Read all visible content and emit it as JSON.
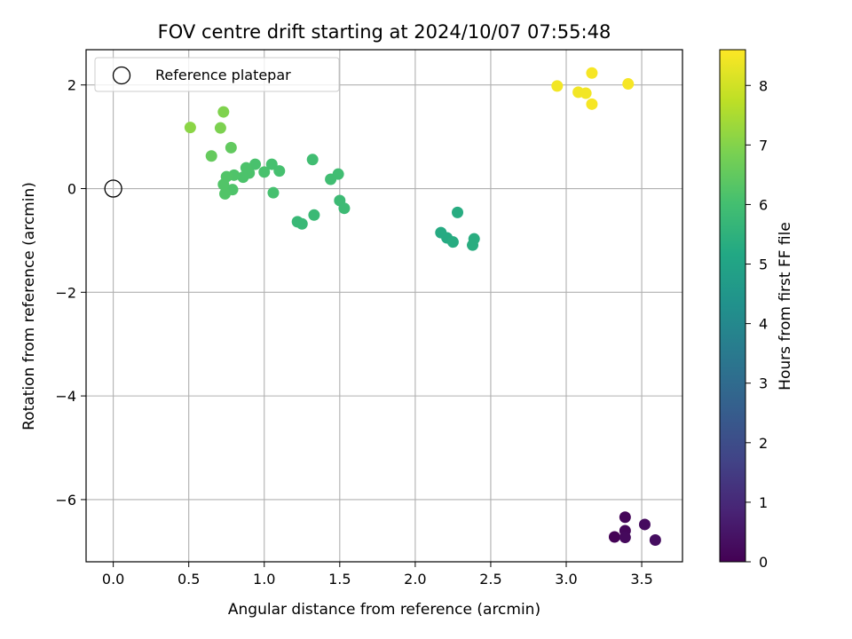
{
  "chart_data": {
    "type": "scatter",
    "title": "FOV centre drift starting at 2024/10/07 07:55:48",
    "xlabel": "Angular distance from reference (arcmin)",
    "ylabel": "Rotation from reference (arcmin)",
    "xlim": [
      -0.18,
      3.77
    ],
    "ylim": [
      -7.2,
      2.68
    ],
    "xticks": [
      0.0,
      0.5,
      1.0,
      1.5,
      2.0,
      2.5,
      3.0,
      3.5
    ],
    "xtick_labels": [
      "0.0",
      "0.5",
      "1.0",
      "1.5",
      "2.0",
      "2.5",
      "3.0",
      "3.5"
    ],
    "yticks": [
      -6,
      -4,
      -2,
      0,
      2
    ],
    "ytick_labels": [
      "−6",
      "−4",
      "−2",
      "0",
      "2"
    ],
    "grid": true,
    "legend": {
      "placement": "top-left",
      "entries": [
        {
          "label": "Reference platepar",
          "marker": "open-circle"
        }
      ]
    },
    "reference_point": {
      "x": 0.0,
      "y": 0.0
    },
    "colorbar": {
      "label": "Hours from first FF file",
      "colormap": "viridis",
      "range": [
        0,
        8.6
      ],
      "ticks": [
        0,
        1,
        2,
        3,
        4,
        5,
        6,
        7,
        8
      ],
      "tick_labels": [
        "0",
        "1",
        "2",
        "3",
        "4",
        "5",
        "6",
        "7",
        "8"
      ]
    },
    "points": [
      {
        "x": 3.32,
        "y": -6.72,
        "hours": 0.05
      },
      {
        "x": 3.39,
        "y": -6.34,
        "hours": 0.1
      },
      {
        "x": 3.39,
        "y": -6.6,
        "hours": 0.15
      },
      {
        "x": 3.39,
        "y": -6.73,
        "hours": 0.2
      },
      {
        "x": 3.52,
        "y": -6.48,
        "hours": 0.25
      },
      {
        "x": 3.59,
        "y": -6.78,
        "hours": 0.3
      },
      {
        "x": 2.17,
        "y": -0.85,
        "hours": 5.25
      },
      {
        "x": 2.21,
        "y": -0.95,
        "hours": 5.25
      },
      {
        "x": 2.25,
        "y": -1.03,
        "hours": 5.3
      },
      {
        "x": 2.28,
        "y": -0.46,
        "hours": 5.3
      },
      {
        "x": 2.38,
        "y": -1.09,
        "hours": 5.35
      },
      {
        "x": 2.39,
        "y": -0.97,
        "hours": 5.35
      },
      {
        "x": 1.22,
        "y": -0.64,
        "hours": 5.75
      },
      {
        "x": 1.25,
        "y": -0.68,
        "hours": 5.75
      },
      {
        "x": 1.33,
        "y": -0.51,
        "hours": 5.8
      },
      {
        "x": 1.5,
        "y": -0.23,
        "hours": 5.85
      },
      {
        "x": 1.53,
        "y": -0.38,
        "hours": 5.85
      },
      {
        "x": 1.32,
        "y": 0.56,
        "hours": 5.95
      },
      {
        "x": 1.44,
        "y": 0.18,
        "hours": 5.95
      },
      {
        "x": 1.49,
        "y": 0.28,
        "hours": 5.95
      },
      {
        "x": 1.06,
        "y": -0.08,
        "hours": 6.05
      },
      {
        "x": 1.05,
        "y": 0.47,
        "hours": 6.05
      },
      {
        "x": 1.1,
        "y": 0.34,
        "hours": 6.05
      },
      {
        "x": 1.0,
        "y": 0.32,
        "hours": 6.1
      },
      {
        "x": 0.94,
        "y": 0.47,
        "hours": 6.1
      },
      {
        "x": 0.9,
        "y": 0.3,
        "hours": 6.15
      },
      {
        "x": 0.88,
        "y": 0.4,
        "hours": 6.15
      },
      {
        "x": 0.86,
        "y": 0.22,
        "hours": 6.15
      },
      {
        "x": 0.8,
        "y": 0.26,
        "hours": 6.2
      },
      {
        "x": 0.79,
        "y": -0.02,
        "hours": 6.2
      },
      {
        "x": 0.75,
        "y": 0.23,
        "hours": 6.25
      },
      {
        "x": 0.73,
        "y": 0.08,
        "hours": 6.25
      },
      {
        "x": 0.74,
        "y": -0.1,
        "hours": 6.25
      },
      {
        "x": 0.78,
        "y": 0.79,
        "hours": 6.5
      },
      {
        "x": 0.65,
        "y": 0.63,
        "hours": 6.55
      },
      {
        "x": 0.71,
        "y": 1.17,
        "hours": 6.9
      },
      {
        "x": 0.73,
        "y": 1.48,
        "hours": 6.95
      },
      {
        "x": 0.51,
        "y": 1.18,
        "hours": 7.1
      },
      {
        "x": 2.94,
        "y": 1.98,
        "hours": 8.45
      },
      {
        "x": 3.08,
        "y": 1.86,
        "hours": 8.45
      },
      {
        "x": 3.13,
        "y": 1.84,
        "hours": 8.45
      },
      {
        "x": 3.17,
        "y": 2.23,
        "hours": 8.5
      },
      {
        "x": 3.17,
        "y": 1.63,
        "hours": 8.5
      },
      {
        "x": 3.41,
        "y": 2.02,
        "hours": 8.5
      }
    ]
  }
}
